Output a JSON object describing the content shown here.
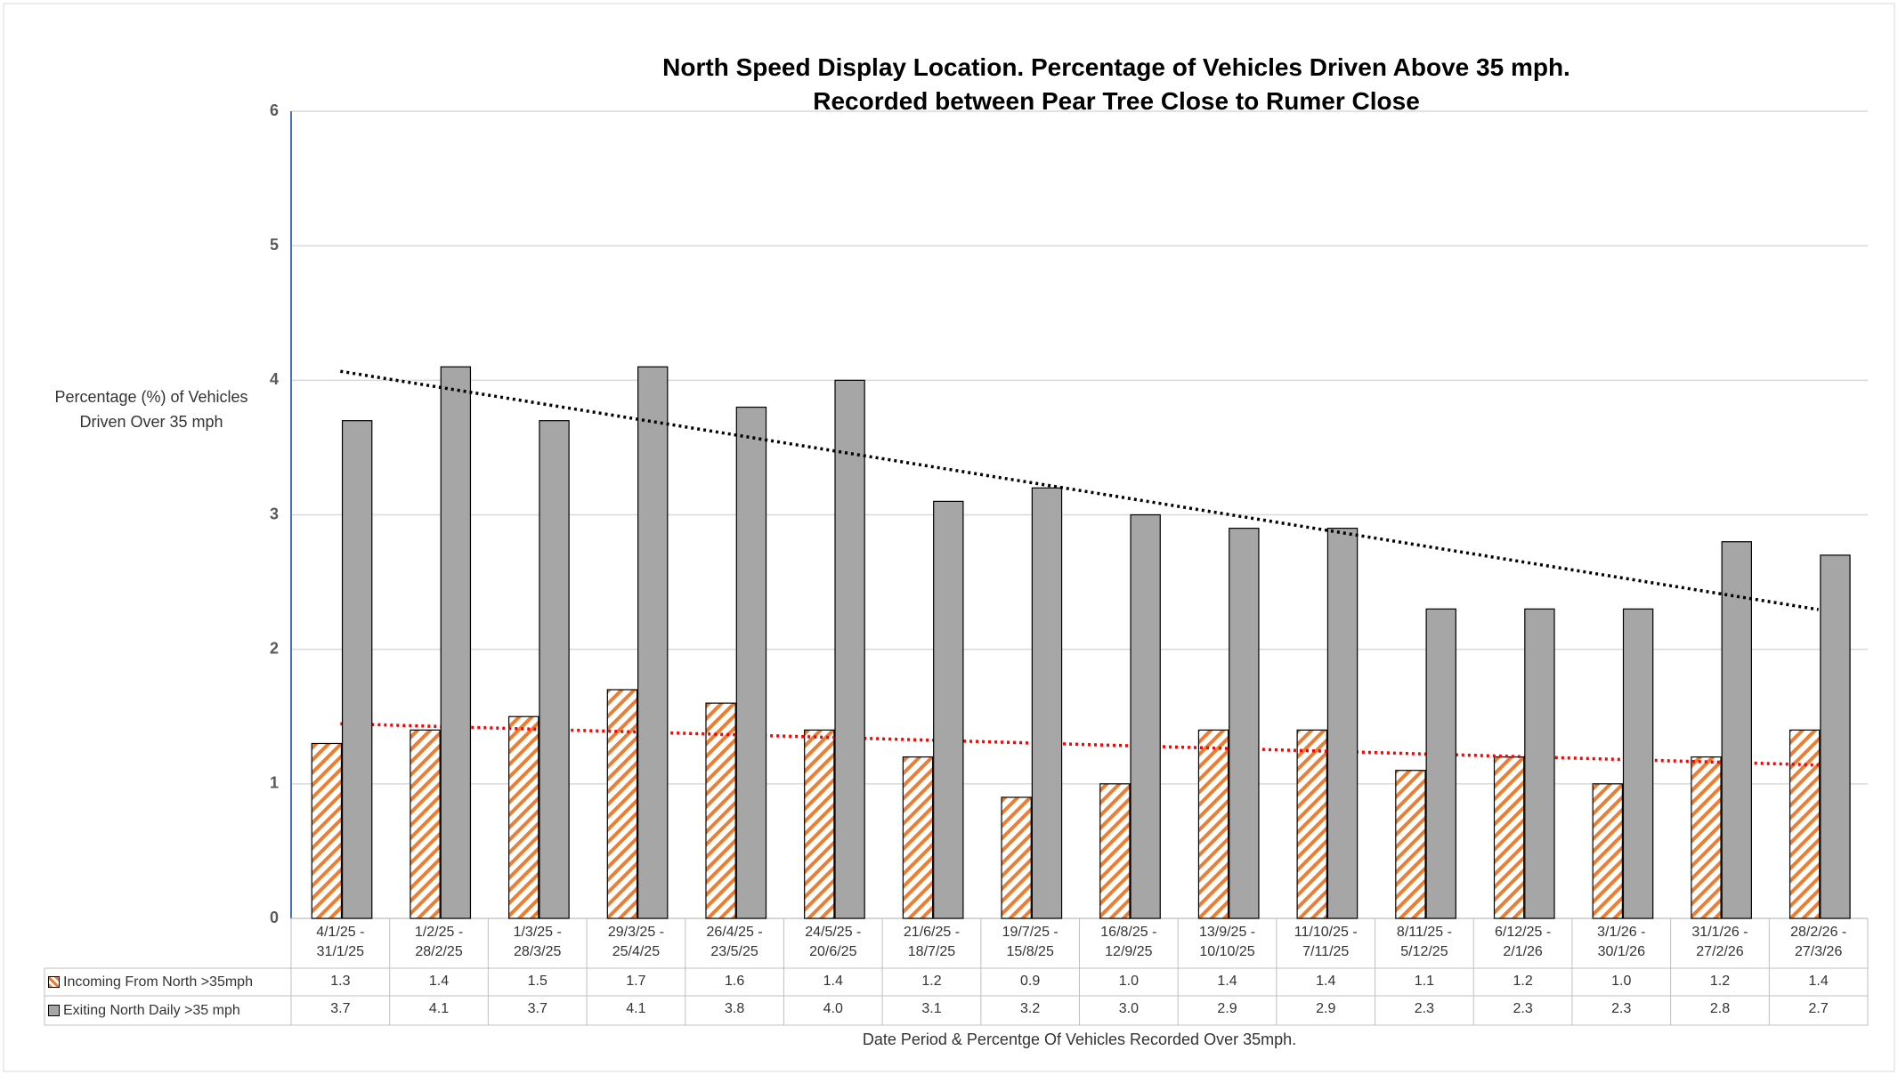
{
  "chart_data": {
    "type": "bar",
    "title": "North Speed Display Location. Percentage of Vehicles Driven Above 35 mph.",
    "subtitle": "Recorded between Pear Tree Close to Rumer Close",
    "y_label": "Percentage (%) of Vehicles Driven Over 35 mph",
    "x_label": "Date Period & Percentge Of Vehicles Recorded Over 35mph.",
    "categories": [
      "4/1/25 - 31/1/25",
      "1/2/25 - 28/2/25",
      "1/3/25 - 28/3/25",
      "29/3/25 - 25/4/25",
      "26/4/25 - 23/5/25",
      "24/5/25 - 20/6/25",
      "21/6/25 - 18/7/25",
      "19/7/25 - 15/8/25",
      "16/8/25 - 12/9/25",
      "13/9/25 - 10/10/25",
      "11/10/25 - 7/11/25",
      "8/11/25 - 5/12/25",
      "6/12/25 - 2/1/26",
      "3/1/26 - 30/1/26",
      "31/1/26 - 27/2/26",
      "28/2/26 - 27/3/26"
    ],
    "series": [
      {
        "name": "Incoming From North >35mph",
        "color": "#ed7d31",
        "values": [
          1.3,
          1.4,
          1.5,
          1.7,
          1.6,
          1.4,
          1.2,
          0.9,
          1.0,
          1.4,
          1.4,
          1.1,
          1.2,
          1.0,
          1.2,
          1.4
        ],
        "value_labels": [
          "1.3",
          "1.4",
          "1.5",
          "1.7",
          "1.6",
          "1.4",
          "1.2",
          "0.9",
          "1.0",
          "1.4",
          "1.4",
          "1.1",
          "1.2",
          "1.0",
          "1.2",
          "1.4"
        ],
        "trendline_color": "#ff0000"
      },
      {
        "name": "Exiting North Daily >35 mph",
        "color": "#a6a6a6",
        "values": [
          3.7,
          4.1,
          3.7,
          4.1,
          3.8,
          4.0,
          3.1,
          3.2,
          3.0,
          2.9,
          2.9,
          2.3,
          2.3,
          2.3,
          2.8,
          2.7
        ],
        "value_labels": [
          "3.7",
          "4.1",
          "3.7",
          "4.1",
          "3.8",
          "4.0",
          "3.1",
          "3.2",
          "3.0",
          "2.9",
          "2.9",
          "2.3",
          "2.3",
          "2.3",
          "2.8",
          "2.7"
        ],
        "trendline_color": "#000000"
      }
    ],
    "ylim": [
      0,
      6
    ],
    "yticks": [
      0,
      1,
      2,
      3,
      4,
      5,
      6
    ],
    "grid": true
  }
}
